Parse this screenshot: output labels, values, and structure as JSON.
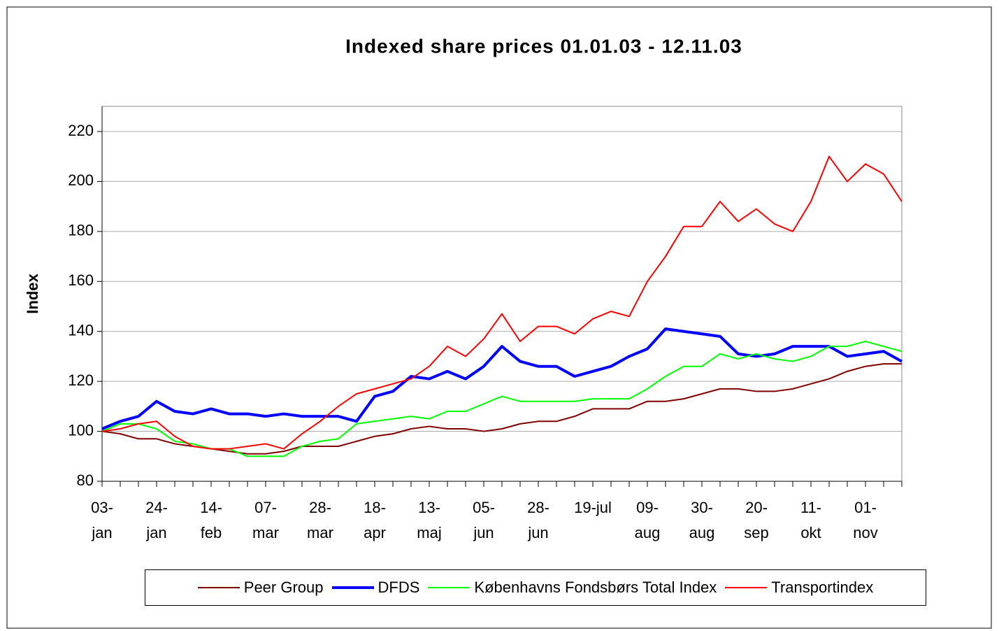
{
  "chart_data": {
    "type": "line",
    "title": "Indexed share prices 01.01.03 - 12.11.03",
    "y_label": "Index",
    "categories": [
      "03-\njan",
      null,
      null,
      "24-\njan",
      null,
      null,
      "14-\nfeb",
      null,
      null,
      "07-\nmar",
      null,
      null,
      "28-\nmar",
      null,
      null,
      "18-\napr",
      null,
      null,
      "13-\nmaj",
      null,
      null,
      "05-\njun",
      null,
      null,
      "28-\njun",
      null,
      null,
      "19-jul",
      null,
      null,
      "09-\naug",
      null,
      null,
      "30-\naug",
      null,
      null,
      "20-\nsep",
      null,
      null,
      "11-\nokt",
      null,
      null,
      "01-\nnov",
      null,
      null
    ],
    "series": [
      {
        "name": "Peer Group",
        "color": "#800000",
        "values": [
          100,
          99,
          97,
          97,
          95,
          94,
          93,
          92,
          91,
          91,
          92,
          94,
          94,
          94,
          96,
          98,
          99,
          101,
          102,
          101,
          101,
          100,
          101,
          103,
          104,
          104,
          106,
          109,
          109,
          109,
          112,
          112,
          113,
          115,
          117,
          117,
          116,
          116,
          117,
          119,
          121,
          124,
          126,
          127,
          127
        ]
      },
      {
        "name": "DFDS",
        "color": "#0000ff",
        "values": [
          101,
          104,
          106,
          112,
          108,
          107,
          109,
          107,
          107,
          106,
          107,
          106,
          106,
          106,
          104,
          114,
          116,
          122,
          121,
          124,
          121,
          126,
          134,
          128,
          126,
          126,
          122,
          124,
          126,
          130,
          133,
          141,
          140,
          139,
          138,
          131,
          130,
          131,
          134,
          134,
          134,
          130,
          131,
          132,
          128
        ]
      },
      {
        "name": "Københavns Fondsbørs Total Index",
        "color": "#00ff00",
        "values": [
          100,
          103,
          103,
          101,
          96,
          95,
          93,
          93,
          90,
          90,
          90,
          94,
          96,
          97,
          103,
          104,
          105,
          106,
          105,
          108,
          108,
          111,
          114,
          112,
          112,
          112,
          112,
          113,
          113,
          113,
          117,
          122,
          126,
          126,
          131,
          129,
          131,
          129,
          128,
          130,
          134,
          134,
          136,
          134,
          132
        ]
      },
      {
        "name": "Transportindex",
        "color": "#ff0000",
        "values": [
          100,
          101,
          103,
          104,
          98,
          94,
          93,
          93,
          94,
          95,
          93,
          99,
          104,
          110,
          115,
          117,
          119,
          121,
          126,
          134,
          130,
          137,
          147,
          136,
          142,
          142,
          139,
          145,
          148,
          146,
          160,
          170,
          182,
          182,
          192,
          184,
          189,
          183,
          180,
          192,
          210,
          200,
          207,
          203,
          192
        ]
      }
    ],
    "ylim": [
      80,
      220
    ],
    "yticks": [
      80,
      100,
      120,
      140,
      160,
      180,
      200,
      220
    ],
    "grid": true,
    "legend": "bottom"
  }
}
